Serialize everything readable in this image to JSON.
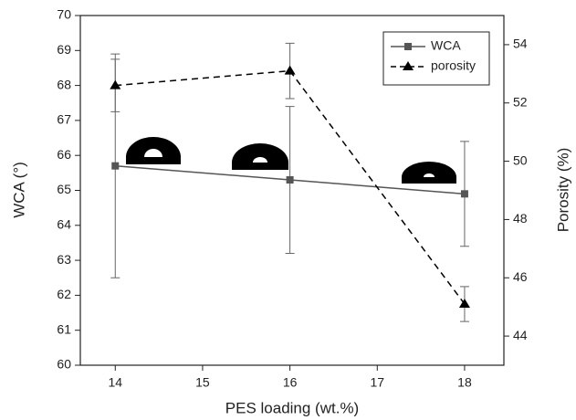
{
  "chart_data": {
    "type": "line",
    "x_label": "PES loading (wt.%)",
    "y_label": "WCA (°)",
    "y2_label": "Porosity (%)",
    "x": [
      14,
      16,
      18
    ],
    "xlim": [
      13.6,
      18.45
    ],
    "xticks": [
      14,
      15,
      16,
      17,
      18
    ],
    "ylim": [
      60,
      70
    ],
    "yticks": [
      60,
      61,
      62,
      63,
      64,
      65,
      66,
      67,
      68,
      69,
      70
    ],
    "y2lim": [
      43,
      55
    ],
    "y2ticks": [
      44,
      46,
      48,
      50,
      52,
      54
    ],
    "legend": "upper right",
    "series": [
      {
        "name": "WCA",
        "color": "#555555",
        "marker": "square",
        "dash": false,
        "values": [
          65.7,
          65.3,
          64.9
        ],
        "errors": [
          3.2,
          2.1,
          1.5
        ]
      },
      {
        "name": "porosity",
        "color": "#000000",
        "marker": "triangle",
        "dash": true,
        "axis": "y2",
        "values": [
          52.6,
          53.1,
          45.1
        ],
        "errors": [
          0.9,
          0.95,
          0.6
        ]
      }
    ]
  }
}
